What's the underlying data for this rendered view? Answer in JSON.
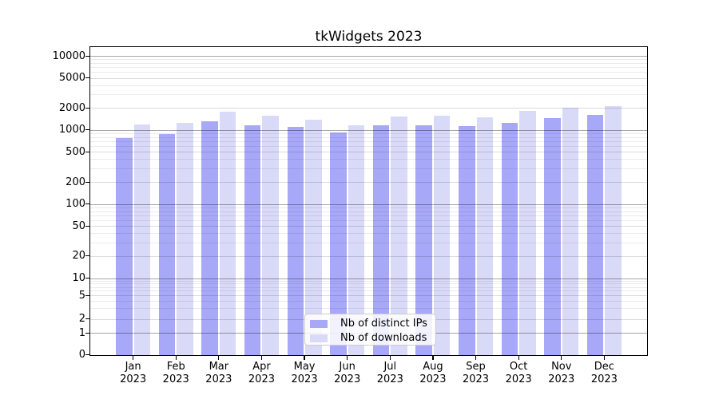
{
  "chart_data": {
    "type": "bar",
    "title": "tkWidgets 2023",
    "x_categories": [
      "Jan",
      "Feb",
      "Mar",
      "Apr",
      "May",
      "Jun",
      "Jul",
      "Aug",
      "Sep",
      "Oct",
      "Nov",
      "Dec"
    ],
    "x_year": "2023",
    "xlabel": "",
    "ylabel": "",
    "yscale": "log-above-1-linear-below",
    "yticks": [
      0,
      1,
      2,
      5,
      10,
      20,
      50,
      100,
      200,
      500,
      1000,
      2000,
      5000,
      10000
    ],
    "ylim": [
      0,
      13000
    ],
    "grid": "on",
    "legend_position": "lower center",
    "series": [
      {
        "name": "Nb of distinct IPs",
        "color": "#a8a8f8",
        "values": [
          770,
          880,
          1300,
          1160,
          1090,
          930,
          1160,
          1150,
          1120,
          1240,
          1450,
          1600
        ]
      },
      {
        "name": "Nb of downloads",
        "color": "#d9d9f8",
        "values": [
          1180,
          1230,
          1750,
          1550,
          1370,
          1150,
          1530,
          1550,
          1470,
          1800,
          2000,
          2100
        ]
      }
    ]
  }
}
